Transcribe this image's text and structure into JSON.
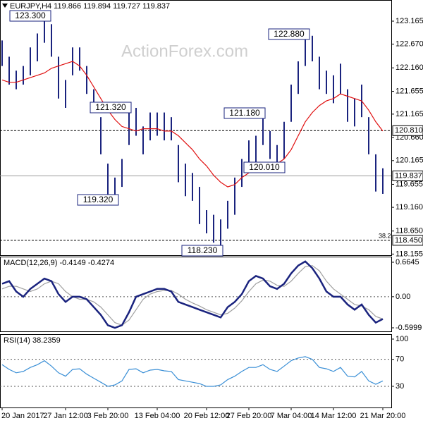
{
  "chart_data": [
    {
      "type": "ohlc",
      "title": "EURJPY,H4  119.866 119.894 119.727 119.837",
      "watermark": "ActionForex.com",
      "color": "#1a237e",
      "categories": [
        "20 Jan 2017",
        null,
        null,
        null,
        null,
        null,
        null,
        null,
        null,
        "27 Jan 12:00",
        null,
        null,
        null,
        null,
        null,
        "3 Feb 20:00",
        null,
        null,
        null,
        null,
        null,
        null,
        "13 Feb 04:00",
        null,
        null,
        null,
        null,
        null,
        null,
        "20 Feb 12:00",
        null,
        null,
        null,
        null,
        null,
        "27 Feb 20:00",
        null,
        null,
        null,
        null,
        null,
        "7 Mar 04:00",
        null,
        null,
        null,
        null,
        null,
        "14 Mar 12:00",
        null,
        null,
        null,
        null,
        null,
        null,
        "21 Mar 20:00"
      ],
      "high": [
        122.75,
        122.4,
        122.1,
        122.2,
        122.6,
        122.9,
        123.35,
        123.1,
        122.4,
        121.9,
        122.6,
        122.6,
        122.2,
        121.7,
        121.1,
        120.1,
        119.8,
        120.2,
        121.2,
        121.3,
        120.9,
        121.2,
        121.2,
        121.2,
        121.1,
        120.5,
        120.1,
        119.9,
        119.6,
        119.1,
        119.0,
        118.9,
        119.3,
        119.8,
        120.2,
        120.6,
        120.7,
        121.18,
        120.8,
        120.5,
        121.0,
        121.8,
        122.3,
        122.88,
        122.85,
        122.4,
        122.1,
        122.0,
        122.25,
        121.7,
        121.5,
        121.8,
        121.1,
        120.3,
        120.0
      ],
      "low": [
        122.2,
        121.8,
        121.7,
        121.8,
        122.0,
        122.3,
        122.7,
        122.4,
        121.5,
        121.3,
        122.0,
        122.1,
        121.6,
        121.2,
        120.3,
        119.4,
        119.3,
        119.6,
        120.5,
        120.7,
        120.3,
        120.6,
        120.7,
        120.6,
        120.6,
        119.7,
        119.4,
        119.3,
        118.8,
        118.6,
        118.4,
        118.23,
        118.7,
        119.0,
        119.6,
        120.0,
        120.1,
        120.5,
        120.2,
        120.01,
        120.2,
        121.0,
        121.6,
        122.2,
        122.3,
        121.7,
        121.6,
        121.4,
        121.6,
        121.0,
        120.9,
        121.1,
        120.3,
        119.5,
        119.45
      ],
      "ma": {
        "color": "#e01010",
        "values": [
          121.9,
          121.85,
          121.85,
          121.9,
          121.95,
          122.0,
          122.05,
          122.15,
          122.2,
          122.25,
          122.3,
          122.2,
          122.0,
          121.75,
          121.5,
          121.25,
          121.05,
          120.9,
          120.85,
          120.8,
          120.85,
          120.85,
          120.85,
          120.8,
          120.8,
          120.7,
          120.55,
          120.4,
          120.2,
          120.05,
          119.85,
          119.7,
          119.6,
          119.65,
          119.8,
          119.9,
          120.0,
          120.05,
          120.05,
          120.1,
          120.2,
          120.4,
          120.7,
          121.0,
          121.2,
          121.35,
          121.45,
          121.5,
          121.6,
          121.55,
          121.5,
          121.45,
          121.25,
          121.0,
          120.8
        ]
      },
      "ylim": [
        118.13,
        123.62
      ],
      "yticks": [
        123.165,
        {
          "value": 122.67,
          "label": "122.670"
        },
        {
          "value": 122.16,
          "label": "122.160"
        },
        121.655,
        121.165,
        {
          "value": 120.66,
          "label": "120.660"
        },
        120.165,
        119.655,
        {
          "value": 119.16,
          "label": "119.160"
        },
        {
          "value": 118.65,
          "label": "118.650"
        },
        118.155
      ],
      "levels": [
        {
          "value": 120.81,
          "label": "120.810",
          "style": "dashed"
        },
        {
          "value": 119.837,
          "label": "119.837",
          "style": "solid"
        },
        {
          "value": 118.45,
          "label": "118.450",
          "style": "dashed",
          "note": "38.2"
        }
      ],
      "annotations": [
        {
          "value": 123.3,
          "label": "123.300"
        },
        {
          "value": 121.32,
          "label": "121.320"
        },
        {
          "value": 119.32,
          "label": "119.320"
        },
        {
          "value": 118.23,
          "label": "118.230"
        },
        {
          "value": 121.18,
          "label": "121.180"
        },
        {
          "value": 120.01,
          "label": "120.010"
        },
        {
          "value": 122.88,
          "label": "122.880"
        }
      ]
    },
    {
      "type": "line",
      "title": "MACD(12,26,9) -0.4149 -0.4274",
      "series": [
        {
          "color": "#1a237e",
          "values": [
            0.25,
            0.3,
            0.1,
            0.0,
            0.15,
            0.25,
            0.35,
            0.3,
            0.05,
            -0.1,
            0.0,
            0.0,
            -0.05,
            -0.2,
            -0.35,
            -0.55,
            -0.6,
            -0.55,
            -0.3,
            0.0,
            0.05,
            0.1,
            0.15,
            0.15,
            0.1,
            -0.1,
            -0.15,
            -0.2,
            -0.25,
            -0.3,
            -0.35,
            -0.4,
            -0.2,
            -0.1,
            0.05,
            0.3,
            0.4,
            0.35,
            0.2,
            0.15,
            0.25,
            0.45,
            0.6,
            0.68,
            0.55,
            0.35,
            0.1,
            0.0,
            0.0,
            -0.15,
            -0.25,
            -0.15,
            -0.35,
            -0.5,
            -0.43
          ]
        },
        {
          "color": "#a0a0a0",
          "values": [
            0.15,
            0.2,
            0.2,
            0.15,
            0.1,
            0.15,
            0.25,
            0.3,
            0.25,
            0.1,
            0.0,
            -0.05,
            -0.05,
            -0.1,
            -0.2,
            -0.35,
            -0.5,
            -0.55,
            -0.45,
            -0.25,
            -0.05,
            0.05,
            0.1,
            0.12,
            0.12,
            0.05,
            -0.05,
            -0.12,
            -0.18,
            -0.25,
            -0.3,
            -0.35,
            -0.32,
            -0.22,
            -0.08,
            0.1,
            0.25,
            0.32,
            0.3,
            0.22,
            0.2,
            0.3,
            0.45,
            0.58,
            0.6,
            0.5,
            0.3,
            0.15,
            0.05,
            -0.05,
            -0.15,
            -0.18,
            -0.25,
            -0.38,
            -0.43
          ]
        }
      ],
      "ylim": [
        -0.668,
        0.773
      ],
      "yticks": [
        0.6645,
        {
          "value": 0,
          "label": "0.00"
        },
        -0.5999
      ],
      "levels": [
        0
      ]
    },
    {
      "type": "line",
      "title": "RSI(14) 38.2359",
      "series": [
        {
          "color": "#3a8fd6",
          "values": [
            62,
            55,
            50,
            52,
            58,
            62,
            68,
            60,
            50,
            45,
            55,
            56,
            48,
            42,
            36,
            30,
            32,
            38,
            55,
            56,
            50,
            54,
            55,
            53,
            52,
            40,
            38,
            36,
            34,
            30,
            30,
            32,
            40,
            45,
            52,
            58,
            58,
            62,
            55,
            52,
            60,
            68,
            72,
            74,
            70,
            58,
            56,
            52,
            58,
            45,
            44,
            52,
            38,
            33,
            38
          ]
        }
      ],
      "ylim": [
        -1.4,
        107.3
      ],
      "yticks": [
        100,
        70,
        30
      ],
      "levels": [
        70,
        30
      ]
    }
  ]
}
